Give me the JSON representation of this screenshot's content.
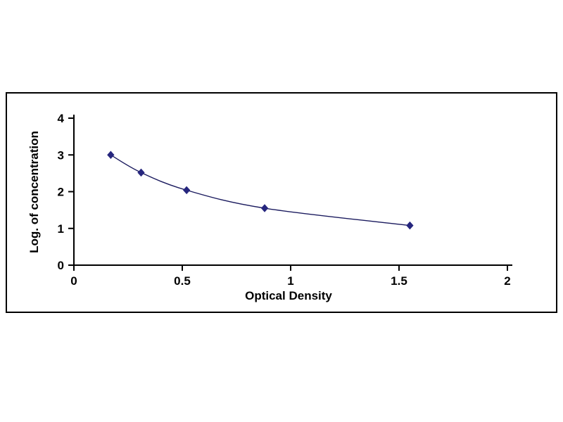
{
  "chart_data": {
    "type": "line",
    "title": "",
    "xlabel": "Optical Density",
    "ylabel": "Log. of concentration",
    "x": [
      0.17,
      0.31,
      0.52,
      0.88,
      1.55
    ],
    "y": [
      3.0,
      2.52,
      2.04,
      1.55,
      1.08
    ],
    "xlim": [
      0,
      2
    ],
    "ylim": [
      0,
      4
    ],
    "x_ticks": [
      0,
      0.5,
      1,
      1.5,
      2
    ],
    "x_tick_labels": [
      "0",
      "0.5",
      "1",
      "1.5",
      "2"
    ],
    "y_ticks": [
      0,
      1,
      2,
      3,
      4
    ],
    "y_tick_labels": [
      "0",
      "1",
      "2",
      "3",
      "4"
    ],
    "marker": "diamond",
    "marker_color": "#26267e",
    "line_color": "#1a1a5e",
    "axis_color": "#000000",
    "grid": false,
    "legend": null
  }
}
